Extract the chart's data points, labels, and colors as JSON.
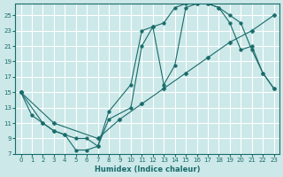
{
  "xlabel": "Humidex (Indice chaleur)",
  "bg_color": "#cce8e8",
  "grid_color": "#ffffff",
  "line_color": "#1a6b6b",
  "xlim": [
    -0.5,
    23.5
  ],
  "ylim": [
    7,
    26.5
  ],
  "xticks": [
    0,
    1,
    2,
    3,
    4,
    5,
    6,
    7,
    8,
    9,
    10,
    11,
    12,
    13,
    14,
    15,
    16,
    17,
    18,
    19,
    20,
    21,
    22,
    23
  ],
  "yticks": [
    7,
    9,
    11,
    13,
    15,
    17,
    19,
    21,
    23,
    25
  ],
  "line1_x": [
    0,
    1,
    2,
    3,
    4,
    5,
    6,
    7,
    8,
    10,
    11,
    12,
    13,
    14,
    15,
    16,
    17,
    18,
    19,
    20,
    21,
    22,
    23
  ],
  "line1_y": [
    15,
    12,
    11,
    10,
    9.5,
    7.5,
    7.5,
    8.0,
    12.5,
    16,
    23,
    23.5,
    24.0,
    26.0,
    26.5,
    26.5,
    26.5,
    26.0,
    25.0,
    24.0,
    20.5,
    17.5,
    15.5
  ],
  "line2_x": [
    0,
    2,
    3,
    4,
    5,
    6,
    7,
    8,
    10,
    11,
    12,
    13,
    14,
    15,
    16,
    17,
    18,
    19,
    20,
    21,
    22,
    23
  ],
  "line2_y": [
    15,
    11,
    10,
    9.5,
    9.0,
    9.0,
    8.0,
    11.5,
    13.0,
    21.0,
    23.5,
    16.0,
    18.5,
    26.0,
    26.5,
    26.5,
    26.0,
    24.0,
    20.5,
    21.0,
    17.5,
    15.5
  ],
  "line3_x": [
    0,
    3,
    7,
    9,
    11,
    13,
    15,
    17,
    19,
    21,
    23
  ],
  "line3_y": [
    15,
    11,
    9.0,
    11.5,
    13.5,
    15.5,
    17.5,
    19.5,
    21.5,
    23.0,
    25.0
  ],
  "marker_size": 2.5
}
